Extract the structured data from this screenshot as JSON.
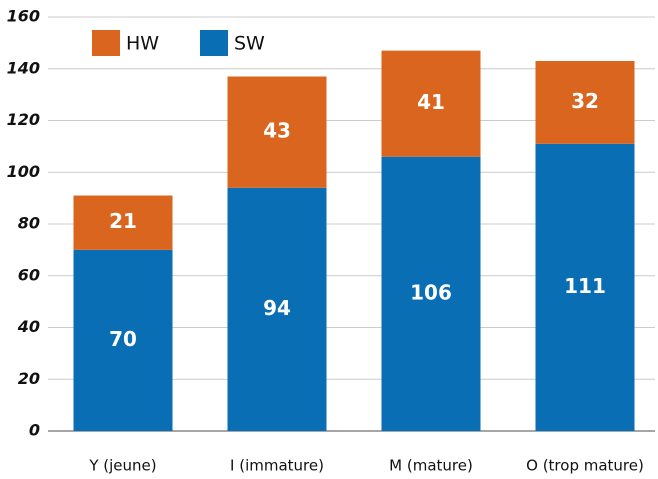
{
  "chart_data": {
    "type": "stacked_bar",
    "categories": [
      "Y (jeune)",
      "I (immature)",
      "M (mature)",
      "O (trop mature)"
    ],
    "series": [
      {
        "name": "SW",
        "color": "#0a6eb4",
        "values": [
          70,
          94,
          106,
          111
        ]
      },
      {
        "name": "HW",
        "color": "#d9651f",
        "values": [
          21,
          43,
          41,
          32
        ]
      }
    ],
    "ylim": [
      0,
      160
    ],
    "yticks": [
      0,
      20,
      40,
      60,
      80,
      100,
      120,
      140,
      160
    ],
    "grid": true
  }
}
